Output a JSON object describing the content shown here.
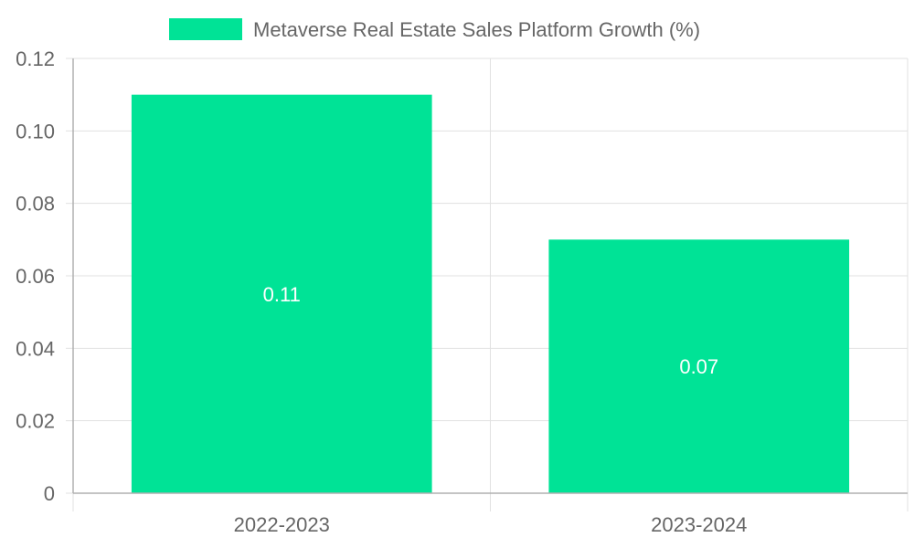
{
  "chart_data": {
    "type": "bar",
    "categories": [
      "2022-2023",
      "2023-2024"
    ],
    "series": [
      {
        "name": "Metaverse Real Estate Sales Platform Growth (%)",
        "values": [
          0.11,
          0.07
        ],
        "color": "#00e396"
      }
    ],
    "data_labels": [
      "0.11",
      "0.07"
    ],
    "y_ticks": [
      "0",
      "0.02",
      "0.04",
      "0.06",
      "0.08",
      "0.10",
      "0.12"
    ],
    "ylim": [
      0,
      0.12
    ],
    "grid": true,
    "legend_position": "top",
    "title": "",
    "xlabel": "",
    "ylabel": ""
  },
  "colors": {
    "bar": "#00e396",
    "grid": "#e1e1e1",
    "axis": "#b0b0b0",
    "text": "#666666",
    "label": "#ffffff"
  }
}
